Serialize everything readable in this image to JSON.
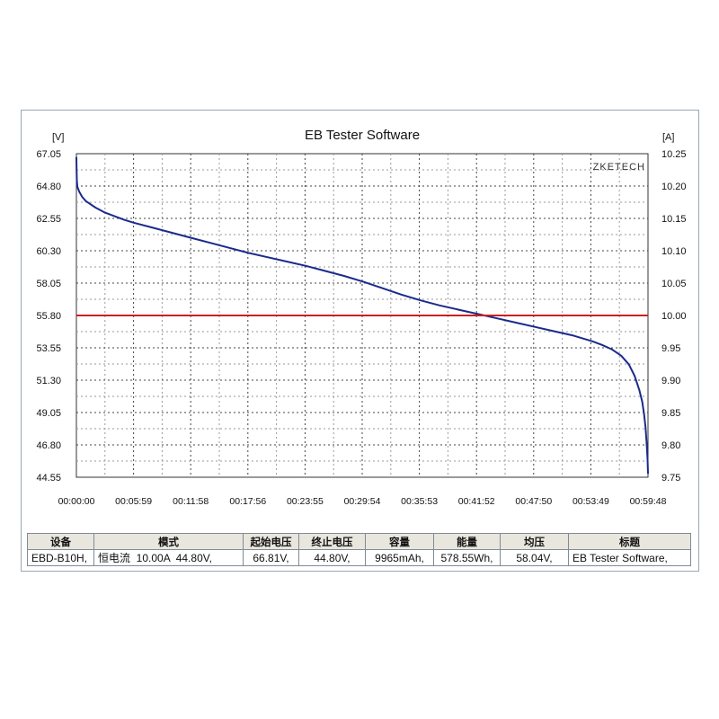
{
  "chart_data": {
    "type": "line",
    "title": "EB Tester Software",
    "brand": "ZKETECH",
    "y_left_unit": "[V]",
    "y_right_unit": "[A]",
    "y_left_ticks": [
      "67.05",
      "64.80",
      "62.55",
      "60.30",
      "58.05",
      "55.80",
      "53.55",
      "51.30",
      "49.05",
      "46.80",
      "44.55"
    ],
    "y_right_ticks": [
      "10.25",
      "10.20",
      "10.15",
      "10.10",
      "10.05",
      "10.00",
      "9.95",
      "9.90",
      "9.85",
      "9.80",
      "9.75"
    ],
    "x_ticks": [
      "00:00:00",
      "00:05:59",
      "00:11:58",
      "00:17:56",
      "00:23:55",
      "00:29:54",
      "00:35:53",
      "00:41:52",
      "00:47:50",
      "00:53:49",
      "00:59:48"
    ],
    "y_left_range": [
      44.55,
      67.05
    ],
    "y_right_range": [
      9.75,
      10.25
    ],
    "x_range_min": [
      0,
      59.8
    ],
    "grid": true,
    "series": [
      {
        "axis": "left",
        "color": "#1a2a8c",
        "x_min": [
          0,
          0.02,
          0.05,
          0.1,
          0.3,
          0.6,
          1.0,
          2.0,
          3.0,
          4.0,
          5.0,
          6.0,
          8.0,
          10.0,
          12.0,
          14.0,
          16.0,
          18.0,
          20.0,
          22.0,
          24.0,
          26.0,
          28.0,
          30.0,
          32.0,
          34.0,
          36.0,
          38.0,
          40.0,
          42.0,
          44.0,
          46.0,
          48.0,
          50.0,
          52.0,
          54.0,
          55.0,
          56.0,
          57.0,
          57.8,
          58.4,
          58.9,
          59.2,
          59.4,
          59.55,
          59.65,
          59.75,
          59.8
        ],
        "y_v": [
          66.81,
          66.0,
          65.2,
          64.75,
          64.4,
          64.05,
          63.75,
          63.3,
          62.95,
          62.7,
          62.45,
          62.25,
          61.9,
          61.55,
          61.2,
          60.85,
          60.5,
          60.15,
          59.85,
          59.55,
          59.25,
          58.9,
          58.55,
          58.15,
          57.7,
          57.25,
          56.85,
          56.5,
          56.2,
          55.9,
          55.6,
          55.3,
          55.0,
          54.7,
          54.4,
          54.0,
          53.75,
          53.45,
          53.0,
          52.4,
          51.6,
          50.6,
          49.8,
          48.9,
          48.0,
          47.0,
          45.8,
          44.8
        ]
      },
      {
        "axis": "right",
        "color": "#cc1f1f",
        "x_min": [
          0,
          59.8
        ],
        "y_a": [
          10.0,
          10.0
        ]
      }
    ]
  },
  "summary": {
    "headers": [
      "设备",
      "模式",
      "起始电压",
      "终止电压",
      "容量",
      "能量",
      "均压",
      "标题"
    ],
    "values": [
      "EBD-B10H,",
      "恒电流  10.00A  44.80V,",
      "66.81V,",
      "44.80V,",
      "9965mAh,",
      "578.55Wh,",
      "58.04V,",
      "EB Tester Software,"
    ]
  }
}
